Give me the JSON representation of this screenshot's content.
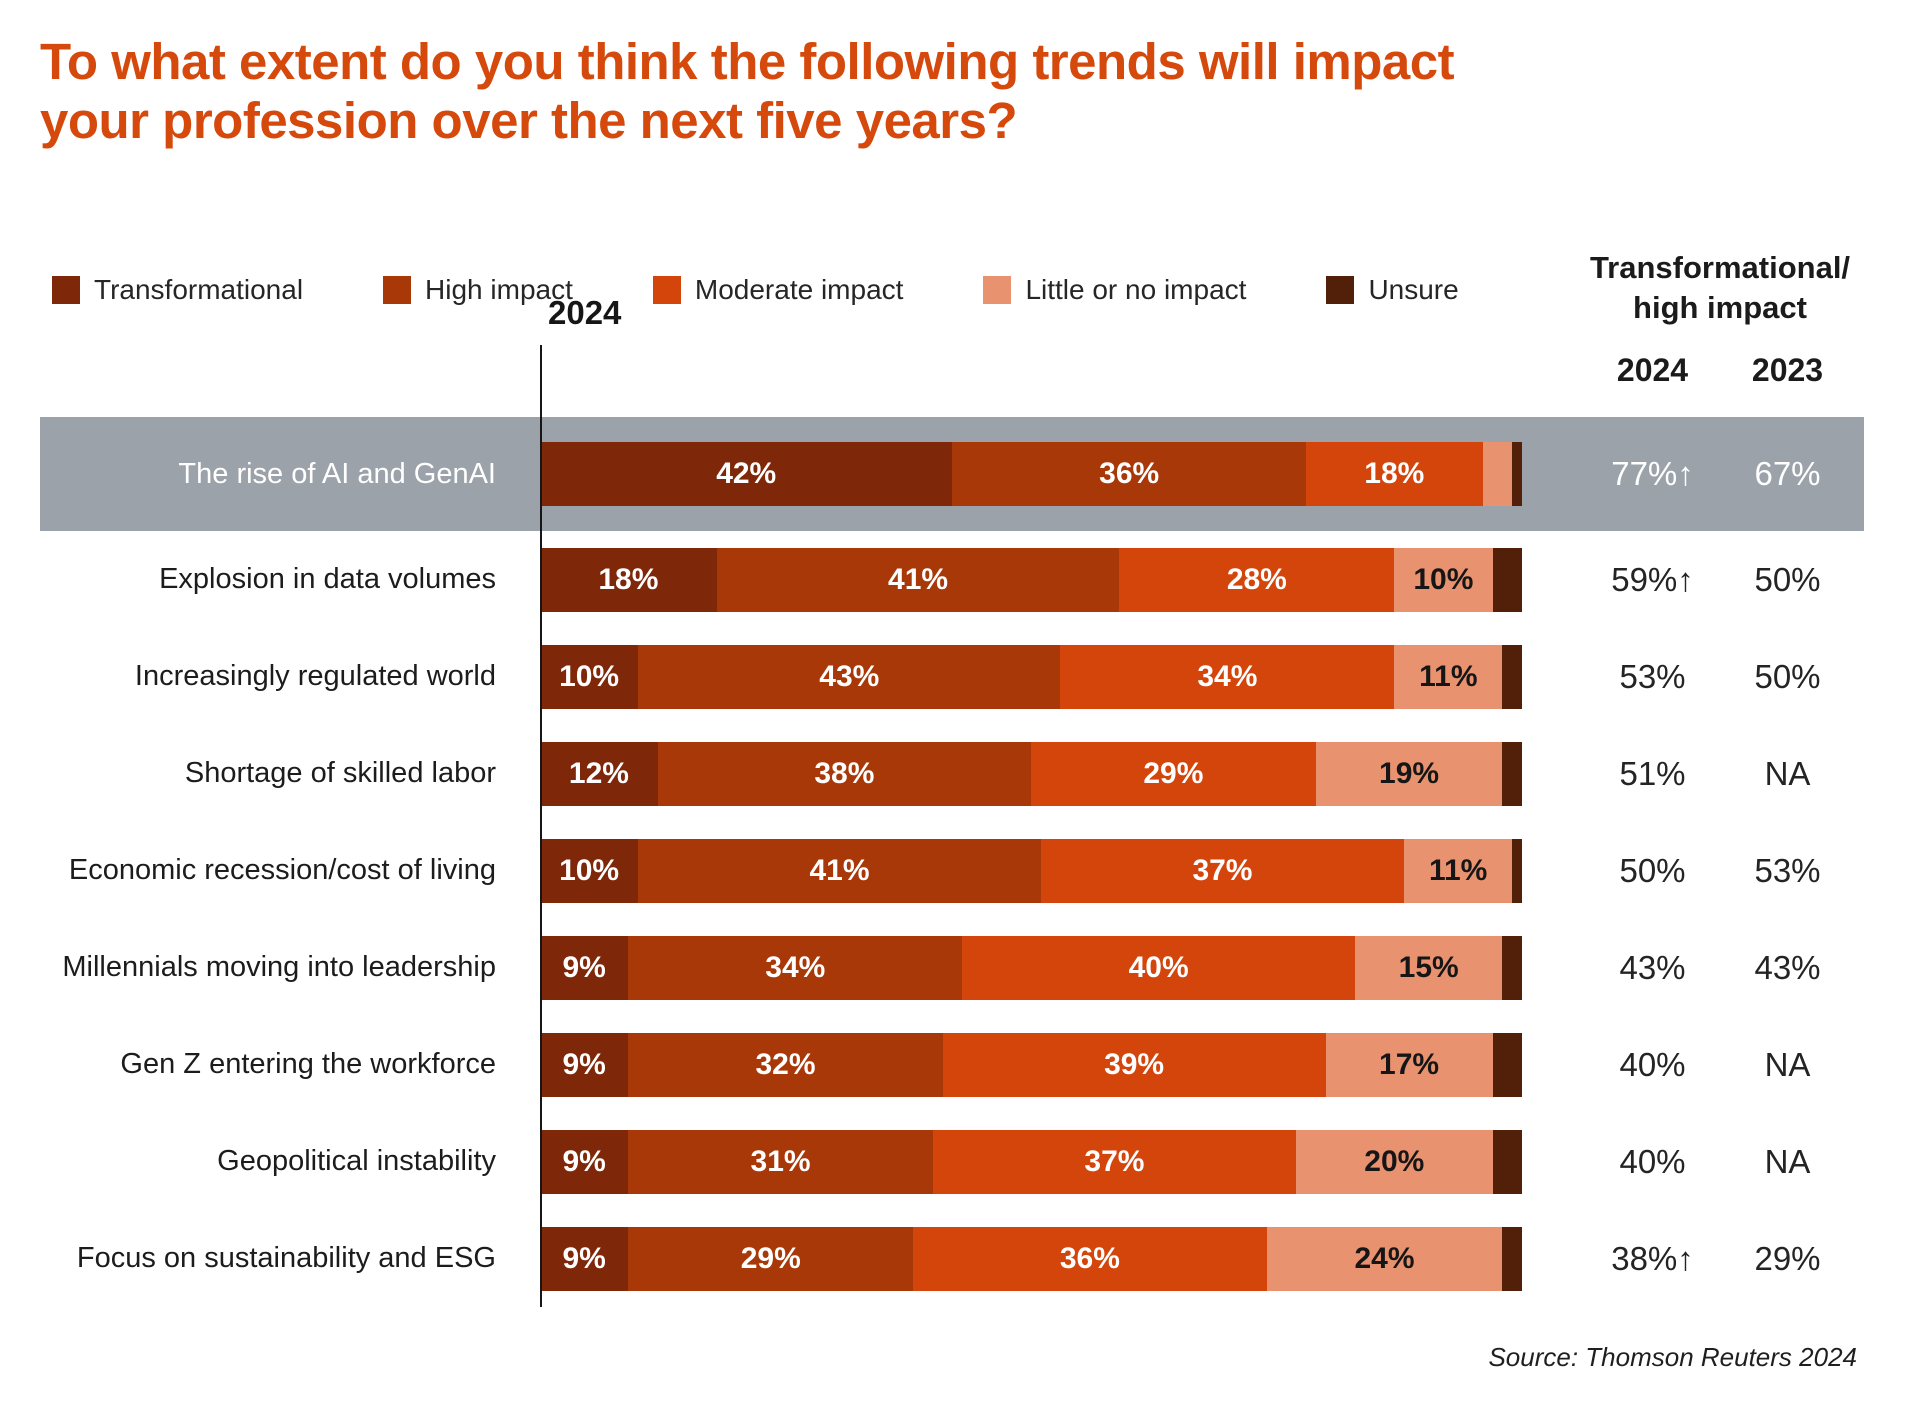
{
  "title": "To what extent do you think the following trends will impact your profession over the next five years?",
  "axis_year_label": "2024",
  "right_header": {
    "line1": "Transformational/",
    "line2": "high impact",
    "col_2024": "2024",
    "col_2023": "2023"
  },
  "source": "Source: Thomson Reuters 2024",
  "colors": {
    "title": "#D5490D",
    "highlight_band": "#9BA2A9",
    "text_dark": "#1C1C1C",
    "bar_label_light": "#FFFFFF",
    "bar_label_dark": "#161616"
  },
  "chart_data": {
    "type": "bar",
    "orientation": "horizontal",
    "stacked": true,
    "x_range_percent": [
      0,
      100
    ],
    "grid": false,
    "legend_position": "top",
    "series": [
      {
        "key": "transformational",
        "name": "Transformational",
        "color": "#7E2709"
      },
      {
        "key": "high-impact",
        "name": "High impact",
        "color": "#A83808"
      },
      {
        "key": "moderate-impact",
        "name": "Moderate impact",
        "color": "#D4450C"
      },
      {
        "key": "little-or-no-impact",
        "name": "Little or no impact",
        "color": "#E9926F"
      },
      {
        "key": "unsure",
        "name": "Unsure",
        "color": "#521F08"
      }
    ],
    "rows": [
      {
        "category": "The rise of AI and GenAI",
        "values": [
          42,
          36,
          18,
          3,
          1
        ],
        "labels": [
          "42%",
          "36%",
          "18%",
          "",
          ""
        ],
        "y2024": "77%↑",
        "y2023": "67%",
        "highlighted": true
      },
      {
        "category": "Explosion in data volumes",
        "values": [
          18,
          41,
          28,
          10,
          3
        ],
        "labels": [
          "18%",
          "41%",
          "28%",
          "10%",
          ""
        ],
        "y2024": "59%↑",
        "y2023": "50%",
        "highlighted": false
      },
      {
        "category": "Increasingly regulated world",
        "values": [
          10,
          43,
          34,
          11,
          2
        ],
        "labels": [
          "10%",
          "43%",
          "34%",
          "11%",
          ""
        ],
        "y2024": "53%",
        "y2023": "50%",
        "highlighted": false
      },
      {
        "category": "Shortage of skilled labor",
        "values": [
          12,
          38,
          29,
          19,
          2
        ],
        "labels": [
          "12%",
          "38%",
          "29%",
          "19%",
          ""
        ],
        "y2024": "51%",
        "y2023": "NA",
        "highlighted": false
      },
      {
        "category": "Economic recession/cost of living",
        "values": [
          10,
          41,
          37,
          11,
          1
        ],
        "labels": [
          "10%",
          "41%",
          "37%",
          "11%",
          ""
        ],
        "y2024": "50%",
        "y2023": "53%",
        "highlighted": false
      },
      {
        "category": "Millennials moving into leadership",
        "values": [
          9,
          34,
          40,
          15,
          2
        ],
        "labels": [
          "9%",
          "34%",
          "40%",
          "15%",
          ""
        ],
        "y2024": "43%",
        "y2023": "43%",
        "highlighted": false
      },
      {
        "category": "Gen Z entering the workforce",
        "values": [
          9,
          32,
          39,
          17,
          3
        ],
        "labels": [
          "9%",
          "32%",
          "39%",
          "17%",
          ""
        ],
        "y2024": "40%",
        "y2023": "NA",
        "highlighted": false
      },
      {
        "category": "Geopolitical instability",
        "values": [
          9,
          31,
          37,
          20,
          3
        ],
        "labels": [
          "9%",
          "31%",
          "37%",
          "20%",
          ""
        ],
        "y2024": "40%",
        "y2023": "NA",
        "highlighted": false
      },
      {
        "category": "Focus on sustainability and ESG",
        "values": [
          9,
          29,
          36,
          24,
          2
        ],
        "labels": [
          "9%",
          "29%",
          "36%",
          "24%",
          ""
        ],
        "y2024": "38%↑",
        "y2023": "29%",
        "highlighted": false
      }
    ]
  }
}
